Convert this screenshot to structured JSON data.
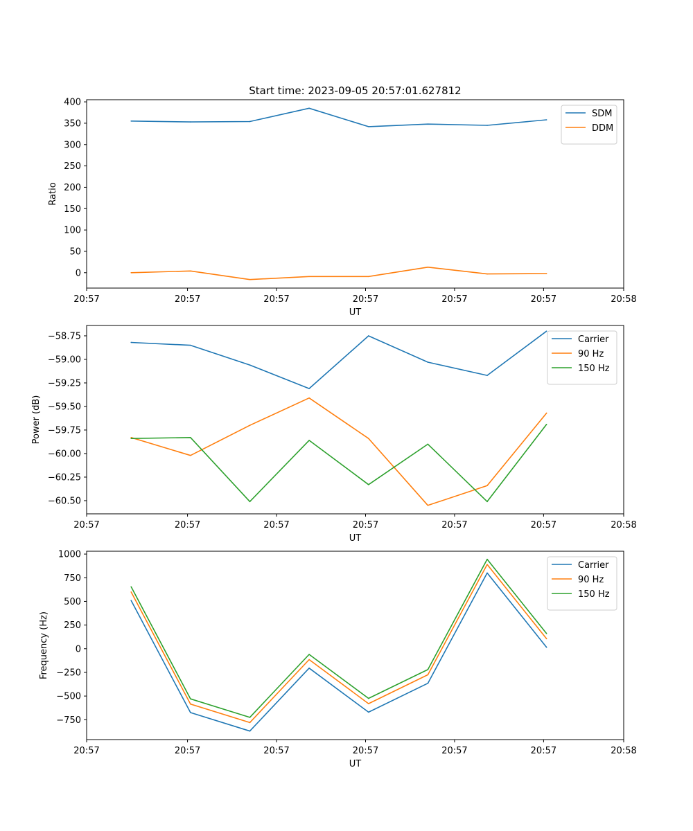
{
  "figure_title": "Start time: 2023-09-05 20:57:01.627812",
  "chart_data": [
    {
      "type": "line",
      "title": "Start time: 2023-09-05 20:57:01.627812",
      "xlabel": "UT",
      "ylabel": "Ratio",
      "x": [
        0,
        1,
        2,
        3,
        4,
        5,
        6,
        7
      ],
      "xlim": [
        -0.75,
        8.3
      ],
      "x_ticks": [
        -0.75,
        0.95,
        2.45,
        3.95,
        5.45,
        6.95,
        8.3
      ],
      "x_tick_labels": [
        "20:57",
        "20:57",
        "20:57",
        "20:57",
        "20:57",
        "20:57",
        "20:58"
      ],
      "ylim": [
        -36,
        405
      ],
      "y_ticks": [
        0,
        50,
        100,
        150,
        200,
        250,
        300,
        350,
        400
      ],
      "legend": "top-right",
      "series": [
        {
          "name": "SDM",
          "color": "#1f77b4",
          "values": [
            355,
            353,
            354,
            385,
            342,
            348,
            345,
            358
          ]
        },
        {
          "name": "DDM",
          "color": "#ff7f0e",
          "values": [
            0,
            4,
            -16,
            -9,
            -9,
            13,
            -3,
            -2
          ]
        }
      ]
    },
    {
      "type": "line",
      "xlabel": "UT",
      "ylabel": "Power (dB)",
      "x": [
        0,
        1,
        2,
        3,
        4,
        5,
        6,
        7
      ],
      "xlim": [
        -0.75,
        8.3
      ],
      "x_ticks": [
        -0.75,
        0.95,
        2.45,
        3.95,
        5.45,
        6.95,
        8.3
      ],
      "x_tick_labels": [
        "20:57",
        "20:57",
        "20:57",
        "20:57",
        "20:57",
        "20:57",
        "20:58"
      ],
      "ylim": [
        -60.64,
        -58.64
      ],
      "y_ticks": [
        -60.5,
        -60.25,
        -60.0,
        -59.75,
        -59.5,
        -59.25,
        -59.0,
        -58.75
      ],
      "y_tick_labels": [
        "−60.50",
        "−60.25",
        "−60.00",
        "−59.75",
        "−59.50",
        "−59.25",
        "−59.00",
        "−58.75"
      ],
      "legend": "top-right",
      "series": [
        {
          "name": "Carrier",
          "color": "#1f77b4",
          "values": [
            -58.82,
            -58.85,
            -59.06,
            -59.31,
            -58.75,
            -59.03,
            -59.17,
            -58.7
          ]
        },
        {
          "name": "90 Hz",
          "color": "#ff7f0e",
          "values": [
            -59.83,
            -60.02,
            -59.7,
            -59.41,
            -59.84,
            -60.55,
            -60.34,
            -59.57
          ]
        },
        {
          "name": "150 Hz",
          "color": "#2ca02c",
          "values": [
            -59.84,
            -59.83,
            -60.51,
            -59.86,
            -60.33,
            -59.9,
            -60.51,
            -59.69
          ]
        }
      ]
    },
    {
      "type": "line",
      "xlabel": "UT",
      "ylabel": "Frequency (Hz)",
      "x": [
        0,
        1,
        2,
        3,
        4,
        5,
        6,
        7
      ],
      "xlim": [
        -0.75,
        8.3
      ],
      "x_ticks": [
        -0.75,
        0.95,
        2.45,
        3.95,
        5.45,
        6.95,
        8.3
      ],
      "x_tick_labels": [
        "20:57",
        "20:57",
        "20:57",
        "20:57",
        "20:57",
        "20:57",
        "20:58"
      ],
      "ylim": [
        -960,
        1030
      ],
      "y_ticks": [
        -750,
        -500,
        -250,
        0,
        250,
        500,
        750,
        1000
      ],
      "y_tick_labels": [
        "−750",
        "−500",
        "−250",
        "0",
        "250",
        "500",
        "750",
        "1000"
      ],
      "legend": "top-right",
      "series": [
        {
          "name": "Carrier",
          "color": "#1f77b4",
          "values": [
            510,
            -675,
            -870,
            -205,
            -670,
            -365,
            800,
            15
          ]
        },
        {
          "name": "90 Hz",
          "color": "#ff7f0e",
          "values": [
            600,
            -585,
            -780,
            -115,
            -580,
            -275,
            890,
            105
          ]
        },
        {
          "name": "150 Hz",
          "color": "#2ca02c",
          "values": [
            655,
            -530,
            -725,
            -60,
            -525,
            -220,
            945,
            160
          ]
        }
      ]
    }
  ]
}
